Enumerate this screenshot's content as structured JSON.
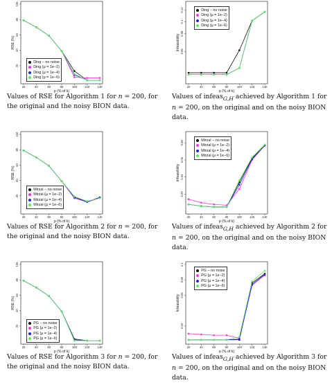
{
  "colors": {
    "no_noise": "#111111",
    "mu_1e2": "#ff33dd",
    "mu_1e4": "#2222ee",
    "mu_1e6": "#55ee55"
  },
  "chart_data": [
    {
      "type": "line",
      "xlabel": "p (% of k)",
      "ylabel": "RSE (%)",
      "x": [
        20,
        40,
        60,
        80,
        100,
        120,
        140
      ],
      "xlim": [
        20,
        140
      ],
      "ylim": [
        0,
        100
      ],
      "yticks": [
        20,
        40,
        60,
        80,
        100
      ],
      "legend_position": "bottom-left",
      "series": [
        {
          "name": "Ding − no noise",
          "color": "#111111",
          "values": [
            79,
            70,
            59,
            39,
            13,
            1,
            1
          ]
        },
        {
          "name": "Ding (μ = 1e−2)",
          "color": "#ff33dd",
          "values": [
            79,
            70,
            59,
            39,
            5,
            4,
            4
          ]
        },
        {
          "name": "Ding (μ = 1e−4)",
          "color": "#2222ee",
          "values": [
            79,
            70,
            59,
            39,
            8,
            1,
            1
          ]
        },
        {
          "name": "Ding (μ = 1e−6)",
          "color": "#55ee55",
          "values": [
            79,
            70,
            59,
            39,
            9,
            1,
            1
          ]
        }
      ],
      "caption": {
        "before": "Values of RSE for Algorithm 1 for ",
        "n_var": "n",
        "mid": " = 200, for the original and the noisy BION data.",
        "after": ""
      }
    },
    {
      "type": "line",
      "xlabel": "p (% of k)",
      "ylabel": "Infeasibility",
      "x": [
        20,
        40,
        60,
        80,
        100,
        120,
        140
      ],
      "xlim": [
        20,
        140
      ],
      "ylim": [
        0,
        0.13
      ],
      "yticks": [
        0.05,
        0.08,
        0.1,
        0.12
      ],
      "legend_position": "top-left",
      "series": [
        {
          "name": "Ding − no noise",
          "color": "#111111",
          "values": [
            0.014,
            0.014,
            0.014,
            0.014,
            0.052,
            0.102,
            0.117
          ]
        },
        {
          "name": "Ding (μ = 1e−2)",
          "color": "#ff33dd",
          "values": [
            0.011,
            0.011,
            0.011,
            0.011,
            0.022,
            0.102,
            0.117
          ]
        },
        {
          "name": "Ding (μ = 1e−4)",
          "color": "#2222ee",
          "values": [
            0.011,
            0.011,
            0.011,
            0.011,
            0.022,
            0.102,
            0.117
          ]
        },
        {
          "name": "Ding (μ = 1e−6)",
          "color": "#55ee55",
          "values": [
            0.011,
            0.011,
            0.011,
            0.011,
            0.022,
            0.102,
            0.117
          ]
        }
      ],
      "caption": {
        "before": "Values of infeas",
        "sub": "G,H",
        "after": " achieved by Algorithm 1 for ",
        "n_var": "n",
        "mid": " = 200, on the original and on the noisy BION data."
      }
    },
    {
      "type": "line",
      "xlabel": "p (% of k)",
      "ylabel": "RSE (%)",
      "x": [
        20,
        40,
        60,
        80,
        100,
        120,
        140
      ],
      "xlim": [
        20,
        140
      ],
      "ylim": [
        0,
        100
      ],
      "yticks": [
        20,
        40,
        60,
        80,
        100
      ],
      "legend_position": "bottom-left",
      "series": [
        {
          "name": "Mirzal − no noise",
          "color": "#111111",
          "values": [
            79,
            70,
            59,
            39,
            19,
            12,
            18
          ]
        },
        {
          "name": "Mirzal (μ = 1e−2)",
          "color": "#ff33dd",
          "values": [
            79,
            70,
            59,
            39,
            17,
            12,
            17
          ]
        },
        {
          "name": "Mirzal (μ = 1e−4)",
          "color": "#2222ee",
          "values": [
            79,
            70,
            59,
            39,
            18,
            12,
            18
          ]
        },
        {
          "name": "Mirzal (μ = 1e−6)",
          "color": "#55ee55",
          "values": [
            79,
            70,
            59,
            39,
            19,
            13,
            17
          ]
        }
      ],
      "caption": {
        "before": "Values of RSE for Algorithm 2 for ",
        "n_var": "n",
        "mid": " = 200, for the original and the noisy BION data.",
        "after": ""
      }
    },
    {
      "type": "line",
      "xlabel": "p (% of k)",
      "ylabel": "Infeasibility",
      "x": [
        20,
        40,
        60,
        80,
        100,
        120,
        140
      ],
      "xlim": [
        20,
        140
      ],
      "ylim": [
        0,
        0.09
      ],
      "yticks": [
        0.02,
        0.04,
        0.06,
        0.08
      ],
      "legend_position": "top-left",
      "series": [
        {
          "name": "Mirzal − no noise",
          "color": "#111111",
          "values": [
            0.008,
            0.006,
            0.005,
            0.005,
            0.034,
            0.062,
            0.077
          ]
        },
        {
          "name": "Mirzal (μ = 1e−2)",
          "color": "#ff33dd",
          "values": [
            0.014,
            0.01,
            0.008,
            0.007,
            0.026,
            0.06,
            0.077
          ]
        },
        {
          "name": "Mirzal (μ = 1e−4)",
          "color": "#2222ee",
          "values": [
            0.008,
            0.006,
            0.005,
            0.005,
            0.031,
            0.061,
            0.077
          ]
        },
        {
          "name": "Mirzal (μ = 1e−6)",
          "color": "#55ee55",
          "values": [
            0.008,
            0.006,
            0.005,
            0.005,
            0.036,
            0.063,
            0.078
          ]
        }
      ],
      "caption": {
        "before": "Values of infeas",
        "sub": "G,H",
        "after": " achieved by Algorithm 2 for ",
        "n_var": "n",
        "mid": " = 200, on the original and on the noisy BION data."
      }
    },
    {
      "type": "line",
      "xlabel": "p (% of k)",
      "ylabel": "RSE (%)",
      "x": [
        20,
        40,
        60,
        80,
        100,
        120,
        140
      ],
      "xlim": [
        20,
        140
      ],
      "ylim": [
        0,
        100
      ],
      "yticks": [
        20,
        40,
        60,
        80,
        100
      ],
      "legend_position": "bottom-left",
      "series": [
        {
          "name": "PG − no noise",
          "color": "#111111",
          "values": [
            79,
            70,
            59,
            39,
            3,
            1,
            1
          ]
        },
        {
          "name": "PG (μ = 1e−2)",
          "color": "#ff33dd",
          "values": [
            79,
            70,
            59,
            39,
            1,
            1,
            1
          ]
        },
        {
          "name": "PG (μ = 1e−4)",
          "color": "#2222ee",
          "values": [
            79,
            70,
            59,
            39,
            2,
            1,
            1
          ]
        },
        {
          "name": "PG (μ = 1e−6)",
          "color": "#55ee55",
          "values": [
            79,
            70,
            59,
            39,
            1,
            1,
            1
          ]
        }
      ],
      "caption": {
        "before": "Values of RSE for Algorithm 3 for ",
        "n_var": "n",
        "mid": " = 200, for the original and the noisy BION data.",
        "after": ""
      }
    },
    {
      "type": "line",
      "xlabel": "p (% of k)",
      "ylabel": "Infeasibility",
      "x": [
        20,
        40,
        60,
        80,
        100,
        120,
        140
      ],
      "xlim": [
        20,
        140
      ],
      "ylim": [
        0,
        0.1
      ],
      "yticks": [
        0.02,
        0.06,
        0.08,
        0.1
      ],
      "legend_position": "top-left",
      "series": [
        {
          "name": "PG − no noise",
          "color": "#111111",
          "values": [
            0.002,
            0.002,
            0.002,
            0.002,
            0.002,
            0.076,
            0.088
          ]
        },
        {
          "name": "PG (μ = 1e−2)",
          "color": "#ff33dd",
          "values": [
            0.01,
            0.009,
            0.008,
            0.008,
            0.004,
            0.073,
            0.086
          ]
        },
        {
          "name": "PG (μ = 1e−4)",
          "color": "#2222ee",
          "values": [
            0.002,
            0.002,
            0.002,
            0.002,
            0.003,
            0.074,
            0.087
          ]
        },
        {
          "name": "PG (μ = 1e−6)",
          "color": "#55ee55",
          "values": [
            0.002,
            0.002,
            0.002,
            0.002,
            0.006,
            0.078,
            0.092
          ]
        }
      ],
      "caption": {
        "before": "Values of infeas",
        "sub": "G,H",
        "after": " achieved by Algorithm 3 for ",
        "n_var": "n",
        "mid": " = 200, on the original and on the noisy BION data."
      }
    }
  ]
}
